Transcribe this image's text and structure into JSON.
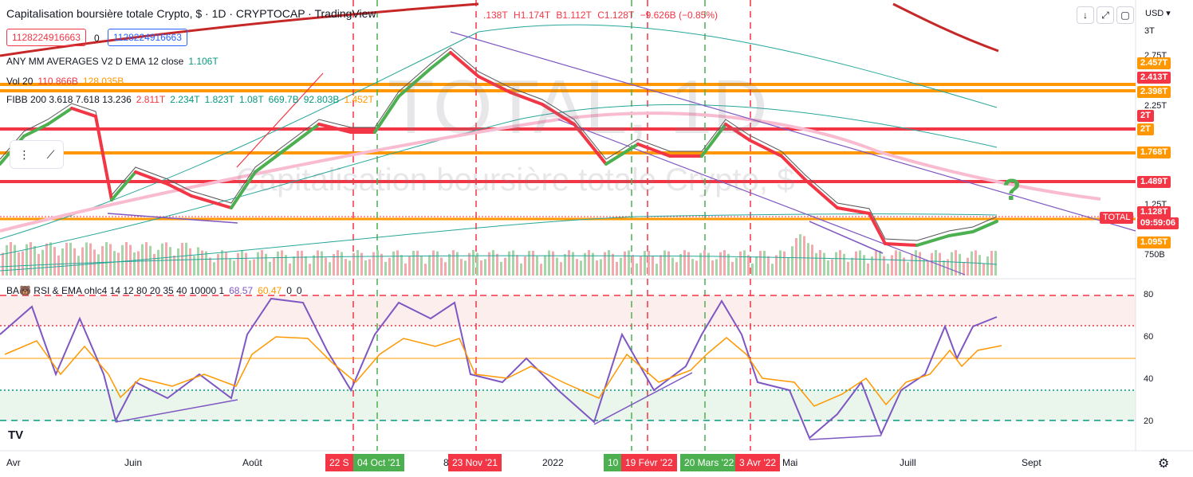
{
  "header": {
    "title": "Capitalisation boursière totale Crypto, $ · 1D · CRYPTOCAP · TradingView",
    "ohlc": {
      "o": ".138T",
      "h": "H1.174T",
      "l": "B1.112T",
      "c": "C1.128T",
      "change": "−9.626B (−0.85%)"
    },
    "value_red": "1128224916663",
    "value_zero": "0",
    "value_blue": "1128224916663"
  },
  "indicators": {
    "ma": {
      "label": "ANY MM AVERAGES V2 D EMA 12 close",
      "value": "1.106T"
    },
    "vol": {
      "label": "Vol 20",
      "v1": "110.866B",
      "v2": "128.035B"
    },
    "fibb": {
      "label": "FIBB 200 3.618 7.618 13.236",
      "v1": "2.811T",
      "v2": "2.234T",
      "v3": "1.823T",
      "v4": "1.08T",
      "v5": "669.7B",
      "v6": "92.803B",
      "v7": "1.452T"
    },
    "rsi": {
      "label": "BA🐻 RSI & EMA ohlc4 14 12 80 20 35 40 10000 1",
      "v1": "68.57",
      "v2": "60.47",
      "v3": "0",
      "v4": "0"
    }
  },
  "watermark": {
    "big": "TOTAL, 1D",
    "small": "Capitalisation boursière totale Crypto, $"
  },
  "toolbar": {
    "down_arrow": "↓",
    "expand": "⤢",
    "window": "▢"
  },
  "side_tools": {
    "grip": "⋮",
    "line": "⟋"
  },
  "axis": {
    "currency": "USD ▾",
    "price_labels": [
      {
        "text": "3T",
        "y": 39
      },
      {
        "text": "2.75T",
        "y": 70
      },
      {
        "text": "2.25T",
        "y": 133
      },
      {
        "text": "1.25T",
        "y": 257
      },
      {
        "text": "750B",
        "y": 320
      }
    ],
    "price_tags": [
      {
        "text": "2.457T",
        "y": 79,
        "color": "#ff9800"
      },
      {
        "text": "2.413T",
        "y": 97,
        "color": "#f23645"
      },
      {
        "text": "2.398T",
        "y": 115,
        "color": "#ff9800"
      },
      {
        "text": "2T",
        "y": 145,
        "color": "#f23645"
      },
      {
        "text": "2T",
        "y": 162,
        "color": "#ff9800"
      },
      {
        "text": "1.768T",
        "y": 191,
        "color": "#ff9800"
      },
      {
        "text": "1.489T",
        "y": 228,
        "color": "#f23645"
      },
      {
        "text": "1.128T",
        "y": 266,
        "color": "#f23645"
      },
      {
        "text": "09:59:06",
        "y": 280,
        "color": "#f23645"
      },
      {
        "text": "1.095T",
        "y": 304,
        "color": "#ff9800"
      }
    ],
    "total_tag": "TOTAL",
    "rsi_labels": [
      {
        "text": "80",
        "y": 370
      },
      {
        "text": "60",
        "y": 423
      },
      {
        "text": "40",
        "y": 476
      },
      {
        "text": "20",
        "y": 529
      }
    ],
    "time_labels": [
      {
        "text": "Avr",
        "x": 8
      },
      {
        "text": "Juin",
        "x": 156
      },
      {
        "text": "Août",
        "x": 304
      },
      {
        "text": "8",
        "x": 556
      },
      {
        "text": "2022",
        "x": 680
      },
      {
        "text": "Mai",
        "x": 981
      },
      {
        "text": "Juill",
        "x": 1128
      },
      {
        "text": "Sept",
        "x": 1281
      }
    ],
    "date_tags": [
      {
        "text": "22 S",
        "x": 408,
        "color": "#f23645"
      },
      {
        "text": "04 Oct '21",
        "x": 443,
        "color": "#4caf50"
      },
      {
        "text": "23 Nov '21",
        "x": 562,
        "color": "#f23645"
      },
      {
        "text": "10",
        "x": 757,
        "color": "#4caf50"
      },
      {
        "text": "19 Févr '22",
        "x": 779,
        "color": "#f23645"
      },
      {
        "text": "20 Mars '22",
        "x": 853,
        "color": "#4caf50"
      },
      {
        "text": "3 Avr '22",
        "x": 922,
        "color": "#f23645"
      }
    ]
  },
  "annotation": {
    "question": "?"
  },
  "footer": {
    "logo": "TV",
    "settings": "⚙"
  },
  "colors": {
    "red": "#f23645",
    "orange": "#ff9800",
    "green": "#4caf50",
    "purple": "#7e57c2",
    "pink": "#f8bbd0",
    "teal": "#26a69a"
  }
}
